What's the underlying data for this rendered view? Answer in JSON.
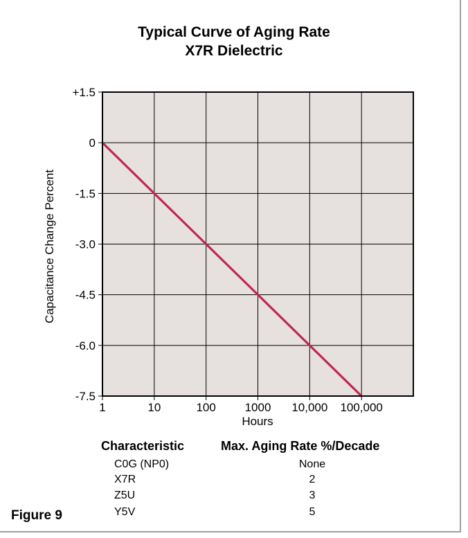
{
  "chart_data": {
    "type": "line",
    "title": [
      "Typical Curve of Aging Rate",
      "X7R Dielectric"
    ],
    "xlabel": "Hours",
    "ylabel": "Capacitance Change Percent",
    "x_scale": "log",
    "x_ticks": [
      1,
      10,
      100,
      1000,
      10000,
      100000
    ],
    "x_tick_labels": [
      "1",
      "10",
      "100",
      "1000",
      "10,000",
      "100,000"
    ],
    "y_ticks": [
      1.5,
      0,
      -1.5,
      -3.0,
      -4.5,
      -6.0,
      -7.5
    ],
    "y_tick_labels": [
      "+1.5",
      "0",
      "-1.5",
      "-3.0",
      "-4.5",
      "-6.0",
      "-7.5"
    ],
    "xlim": [
      1,
      1000000
    ],
    "ylim": [
      -7.5,
      1.5
    ],
    "grid": true,
    "series": [
      {
        "x": [
          1,
          10,
          100,
          1000,
          10000,
          100000
        ],
        "y": [
          0,
          -1.5,
          -3.0,
          -4.5,
          -6.0,
          -7.5
        ],
        "color": "#c0264d"
      }
    ],
    "plot_background": "#e6e0df"
  },
  "table": {
    "headers": [
      "Characteristic",
      "Max. Aging Rate %/Decade"
    ],
    "rows": [
      {
        "characteristic": "C0G (NP0)",
        "rate": "None"
      },
      {
        "characteristic": "X7R",
        "rate": "2"
      },
      {
        "characteristic": "Z5U",
        "rate": "3"
      },
      {
        "characteristic": "Y5V",
        "rate": "5"
      }
    ]
  },
  "figure_label": "Figure 9"
}
